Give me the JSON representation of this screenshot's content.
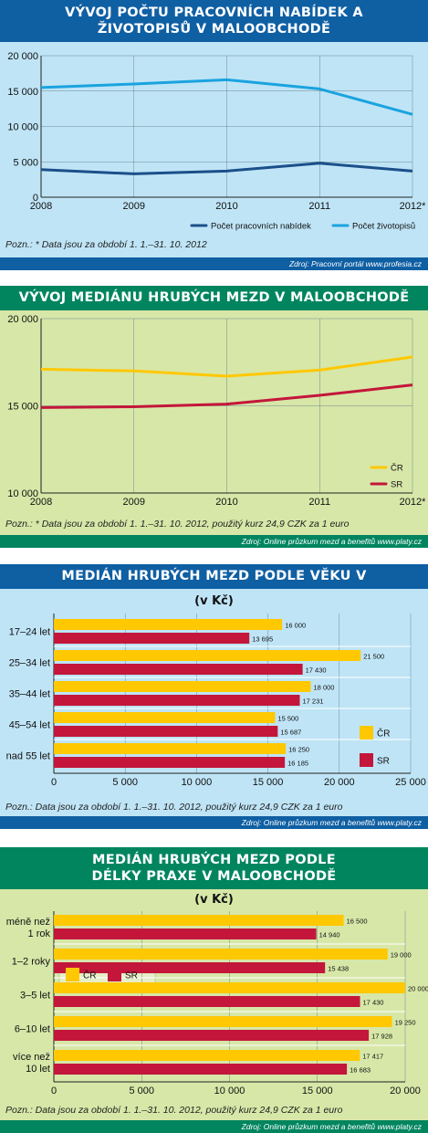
{
  "chart_data": [
    {
      "type": "line",
      "title": "VÝVOJ POČTU PRACOVNÍCH NABÍDEK A ŽIVOTOPISŮ V MALOOBCHODĚ",
      "x": [
        "2008",
        "2009",
        "2010",
        "2011",
        "2012*"
      ],
      "series": [
        {
          "name": "Počet pracovních nabídek",
          "values": [
            3900,
            3300,
            3700,
            4800,
            3700
          ],
          "color": "#1b4f8a"
        },
        {
          "name": "Počet životopisů",
          "values": [
            15500,
            16000,
            16600,
            15300,
            11700
          ],
          "color": "#1aa3df"
        }
      ],
      "ylim": [
        0,
        20000
      ],
      "yticks": [
        "0",
        "5 000",
        "10 000",
        "15 000",
        "20 000"
      ],
      "grid": true,
      "legend": "bottom-right",
      "note": "Pozn.: * Data jsou za období 1. 1.–31. 10. 2012",
      "source": "Zdroj: Pracovní portál www.profesia.cz",
      "header_color": "#0f5fa3",
      "background_color": "#bfe4f6"
    },
    {
      "type": "line",
      "title": "VÝVOJ MEDIÁNU HRUBÝCH MEZD V MALOOBCHODĚ",
      "x": [
        "2008",
        "2009",
        "2010",
        "2011",
        "2012*"
      ],
      "series": [
        {
          "name": "ČR",
          "values": [
            17100,
            17000,
            16700,
            17050,
            17800
          ],
          "color": "#ffc800"
        },
        {
          "name": "SR",
          "values": [
            14900,
            14950,
            15100,
            15600,
            16200
          ],
          "color": "#c3163a"
        }
      ],
      "ylim": [
        10000,
        20000
      ],
      "yticks": [
        "10 000",
        "15 000",
        "20 000"
      ],
      "grid": true,
      "legend": "bottom-right",
      "note": "Pozn.: * Data jsou za období 1. 1.–31. 10. 2012, použitý kurz 24,9 CZK za 1 euro",
      "source": "Zdroj: Online průzkum mezd a benefitů www.platy.cz",
      "header_color": "#00855f",
      "background_color": "#d7e7a8"
    },
    {
      "type": "bar",
      "orientation": "horizontal",
      "title": "MEDIÁN HRUBÝCH MEZD PODLE VĚKU V MALOOBCHODĚ",
      "subtitle": "(v Kč)",
      "categories": [
        "17–24 let",
        "25–34 let",
        "35–44 let",
        "45–54 let",
        "nad 55 let"
      ],
      "series": [
        {
          "name": "ČR",
          "values": [
            16000,
            21500,
            18000,
            15500,
            16250
          ],
          "labels": [
            "16 000",
            "21 500",
            "18 000",
            "15 500",
            "16 250"
          ],
          "color": "#ffc800"
        },
        {
          "name": "SR",
          "values": [
            13695,
            17430,
            17231,
            15687,
            16185
          ],
          "labels": [
            "13 695",
            "17 430",
            "17 231",
            "15 687",
            "16 185"
          ],
          "color": "#c3163a"
        }
      ],
      "xlim": [
        0,
        25000
      ],
      "xticks": [
        "0",
        "5 000",
        "10 000",
        "15 000",
        "20 000",
        "25 000"
      ],
      "grid": true,
      "legend": "right",
      "note": "Pozn.: Data jsou za období 1. 1.–31. 10. 2012, použitý kurz 24,9 CZK za 1 euro",
      "source": "Zdroj: Online průzkum mezd a benefitů www.platy.cz",
      "header_color": "#0f5fa3",
      "background_color": "#bfe4f6"
    },
    {
      "type": "bar",
      "orientation": "horizontal",
      "title": "MEDIÁN HRUBÝCH MEZD PODLE DÉLKY PRAXE V MALOOBCHODĚ",
      "subtitle": "(v Kč)",
      "categories": [
        [
          "méně než",
          "1 rok"
        ],
        [
          "1–2 roky"
        ],
        [
          "3–5 let"
        ],
        [
          "6–10 let"
        ],
        [
          "více než",
          "10 let"
        ]
      ],
      "series": [
        {
          "name": "ČR",
          "values": [
            16500,
            19000,
            20000,
            19250,
            17417
          ],
          "labels": [
            "16 500",
            "19 000",
            "20 000",
            "19 250",
            "17 417"
          ],
          "color": "#ffc800"
        },
        {
          "name": "SR",
          "values": [
            14940,
            15438,
            17430,
            17928,
            16683
          ],
          "labels": [
            "14 940",
            "15 438",
            "17 430",
            "17 928",
            "16 683"
          ],
          "color": "#c3163a"
        }
      ],
      "xlim": [
        0,
        20000
      ],
      "xticks": [
        "0",
        "5 000",
        "10 000",
        "15 000",
        "20 000"
      ],
      "grid": true,
      "legend": "top-left",
      "note": "Pozn.: Data jsou za období 1. 1.–31. 10. 2012, použitý kurz 24,9 CZK za 1 euro",
      "source": "Zdroj: Online průzkum mezd a benefitů www.platy.cz",
      "header_color": "#00855f",
      "background_color": "#d7e7a8"
    }
  ]
}
